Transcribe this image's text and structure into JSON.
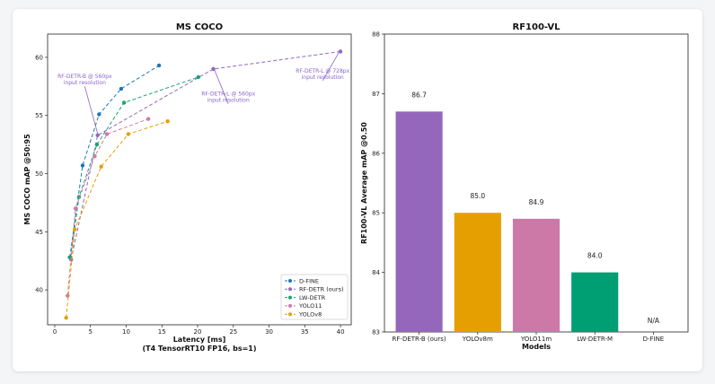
{
  "chart_data": [
    {
      "type": "line",
      "title": "MS COCO",
      "xlabel": "Latency [ms]",
      "xlabel2": "(T4 TensorRT10 FP16, bs=1)",
      "ylabel": "MS COCO mAP @50:95",
      "xlim": [
        -1,
        41.5
      ],
      "ylim": [
        37,
        62
      ],
      "xticks": [
        0,
        5,
        10,
        15,
        20,
        25,
        30,
        35,
        40
      ],
      "yticks": [
        40,
        45,
        50,
        55,
        60
      ],
      "legend_position": "lower-right",
      "grid": false,
      "series": [
        {
          "name": "D-FINE",
          "color": "#1f77b4",
          "points": [
            [
              2.1,
              42.8
            ],
            [
              3.9,
              50.7
            ],
            [
              6.2,
              55.1
            ],
            [
              9.3,
              57.3
            ],
            [
              14.6,
              59.3
            ]
          ]
        },
        {
          "name": "RF-DETR (ours)",
          "color": "#9467bd",
          "points": [
            [
              2.3,
              42.6
            ],
            [
              6.0,
              53.3
            ],
            [
              22.2,
              59.0
            ],
            [
              40.0,
              60.5
            ]
          ]
        },
        {
          "name": "LW-DETR",
          "color": "#17a37a",
          "points": [
            [
              2.2,
              42.8
            ],
            [
              3.4,
              48.0
            ],
            [
              5.9,
              52.5
            ],
            [
              9.7,
              56.1
            ],
            [
              20.1,
              58.3
            ]
          ]
        },
        {
          "name": "YOLO11",
          "color": "#d17aa5",
          "points": [
            [
              1.8,
              39.5
            ],
            [
              2.9,
              47.0
            ],
            [
              5.6,
              51.5
            ],
            [
              7.3,
              53.4
            ],
            [
              13.1,
              54.7
            ]
          ]
        },
        {
          "name": "YOLOv8",
          "color": "#e69f00",
          "points": [
            [
              1.6,
              37.6
            ],
            [
              2.8,
              45.2
            ],
            [
              6.5,
              50.6
            ],
            [
              10.3,
              53.4
            ],
            [
              15.8,
              54.5
            ]
          ]
        }
      ],
      "annotations": [
        {
          "lines": [
            "RF-DETR-B @ 560px",
            "input resolution"
          ],
          "target": [
            6.0,
            53.3
          ],
          "text_at": [
            4.2,
            58.2
          ]
        },
        {
          "lines": [
            "RF-DETR-L @ 560px",
            "input resolution"
          ],
          "target": [
            22.2,
            59.0
          ],
          "text_at": [
            24.3,
            56.7
          ]
        },
        {
          "lines": [
            "RF-DETR-L @ 728px",
            "input resolution"
          ],
          "target": [
            40.0,
            60.5
          ],
          "text_at": [
            37.5,
            58.7
          ]
        }
      ]
    },
    {
      "type": "bar",
      "title": "RF100-VL",
      "xlabel": "Models",
      "ylabel": "RF100-VL Average mAP @0.50",
      "ylim": [
        83,
        88
      ],
      "yticks": [
        83,
        84,
        85,
        86,
        87,
        88
      ],
      "categories": [
        "RF-DETR-B (ours)",
        "YOLOv8m",
        "YOLO11m",
        "LW-DETR-M",
        "D-FINE"
      ],
      "values": [
        86.7,
        85.0,
        84.9,
        84.0,
        null
      ],
      "labels": [
        "86.7",
        "85.0",
        "84.9",
        "84.0",
        "N/A"
      ],
      "colors": [
        "#9467bd",
        "#e69f00",
        "#cc79a7",
        "#009e73",
        "#cccccc"
      ]
    }
  ]
}
